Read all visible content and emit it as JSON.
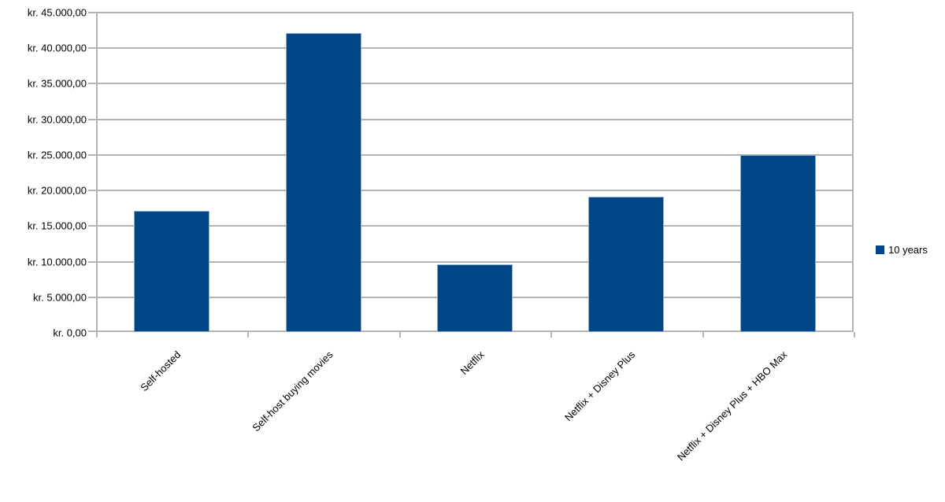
{
  "chart_data": {
    "type": "bar",
    "title": "",
    "xlabel": "",
    "ylabel": "",
    "categories": [
      "Self-hosted",
      "Self-host buying movies",
      "Netflix",
      "Netflix + Disney Plus",
      "Netflix + Disney Plus + HBO Max"
    ],
    "series": [
      {
        "name": "10 years",
        "values": [
          17000,
          42000,
          9500,
          19000,
          24900
        ],
        "color": "#004586"
      }
    ],
    "ylim": [
      0,
      45000
    ],
    "y_tick_step": 5000,
    "y_tick_labels": [
      "kr. 0,00",
      "kr. 5.000,00",
      "kr. 10.000,00",
      "kr. 15.000,00",
      "kr. 20.000,00",
      "kr. 25.000,00",
      "kr. 30.000,00",
      "kr. 35.000,00",
      "kr. 40.000,00",
      "kr. 45.000,00"
    ],
    "currency_prefix": "kr.",
    "grid": "horizontal-only",
    "legend_position": "right-middle"
  },
  "legend": {
    "items": [
      {
        "label": "10 years",
        "color": "#004586"
      }
    ]
  },
  "colors": {
    "bar_fill": "#004586",
    "bar_edge": "#8fadcc",
    "grid": "#b3b3b3",
    "text": "#000000",
    "background": "#ffffff"
  }
}
